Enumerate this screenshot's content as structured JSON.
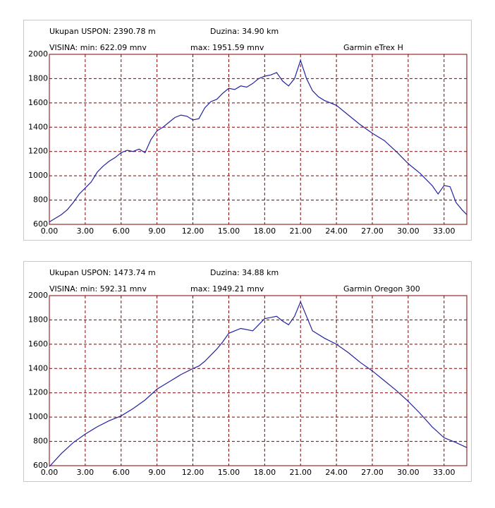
{
  "chart_data": [
    {
      "type": "line",
      "annotations": [
        "Ukupan USPON: 2390.78 m",
        "Duzina:  34.90 km",
        "VISINA: min: 622.09 mnv",
        "max: 1951.59 mnv",
        "Garmin eTrex H"
      ],
      "x": [
        0,
        0.5,
        1,
        1.5,
        2,
        2.5,
        3,
        3.5,
        4,
        4.5,
        5,
        5.5,
        6,
        6.5,
        7,
        7.5,
        8,
        8.5,
        9,
        9.5,
        10,
        10.5,
        11,
        11.5,
        12,
        12.5,
        13,
        13.5,
        14,
        14.5,
        15,
        15.5,
        16,
        16.5,
        17,
        17.5,
        18,
        18.5,
        19,
        19.5,
        20,
        20.5,
        21,
        21.5,
        22,
        22.5,
        23,
        24,
        25,
        26,
        27,
        28,
        29,
        30,
        31,
        32,
        32.5,
        33,
        33.5,
        34,
        34.5,
        34.9
      ],
      "series": [
        {
          "color": "#2323a0",
          "values": [
            620,
            650,
            680,
            720,
            780,
            850,
            900,
            950,
            1030,
            1080,
            1120,
            1150,
            1190,
            1210,
            1200,
            1220,
            1190,
            1300,
            1370,
            1400,
            1440,
            1480,
            1500,
            1490,
            1460,
            1470,
            1560,
            1610,
            1630,
            1680,
            1720,
            1710,
            1740,
            1730,
            1760,
            1800,
            1820,
            1830,
            1850,
            1780,
            1740,
            1800,
            1950,
            1800,
            1700,
            1650,
            1620,
            1580,
            1500,
            1420,
            1350,
            1290,
            1200,
            1100,
            1020,
            920,
            850,
            920,
            910,
            780,
            720,
            680
          ]
        }
      ],
      "xlim": [
        0,
        34.9
      ],
      "xticks": [
        {
          "value": 0,
          "label": "0.00"
        },
        {
          "value": 3,
          "label": "3.00"
        },
        {
          "value": 6,
          "label": "6.00"
        },
        {
          "value": 9,
          "label": "9.00"
        },
        {
          "value": 12,
          "label": "12.00"
        },
        {
          "value": 15,
          "label": "15.00"
        },
        {
          "value": 18,
          "label": "18.00"
        },
        {
          "value": 21,
          "label": "21.00"
        },
        {
          "value": 24,
          "label": "24.00"
        },
        {
          "value": 27,
          "label": "27.00"
        },
        {
          "value": 30,
          "label": "30.00"
        },
        {
          "value": 33,
          "label": "33.00"
        }
      ],
      "ylim": [
        600,
        2000
      ],
      "yticks": [
        600,
        800,
        1000,
        1200,
        1400,
        1600,
        1800,
        2000
      ],
      "grid": true
    },
    {
      "type": "line",
      "annotations": [
        "Ukupan USPON: 1473.74 m",
        "Duzina:  34.88 km",
        "VISINA: min: 592.31 mnv",
        "max: 1949.21 mnv",
        "Garmin Oregon 300"
      ],
      "x": [
        0,
        1,
        2,
        3,
        4,
        5,
        6,
        7,
        8,
        9,
        10,
        11,
        12,
        12.5,
        13,
        14,
        14.5,
        15,
        16,
        17,
        17.5,
        18,
        19,
        19.5,
        20,
        20.5,
        21,
        21.5,
        22,
        23,
        24,
        25,
        26,
        27,
        28,
        29,
        30,
        31,
        32,
        33,
        34,
        34.88
      ],
      "series": [
        {
          "color": "#2323a0",
          "values": [
            592,
            700,
            790,
            860,
            920,
            970,
            1010,
            1070,
            1140,
            1230,
            1290,
            1350,
            1400,
            1420,
            1460,
            1560,
            1620,
            1690,
            1730,
            1710,
            1760,
            1810,
            1830,
            1790,
            1760,
            1830,
            1949,
            1830,
            1710,
            1650,
            1600,
            1530,
            1450,
            1380,
            1300,
            1220,
            1130,
            1030,
            920,
            830,
            790,
            750
          ]
        }
      ],
      "xlim": [
        0,
        34.9
      ],
      "xticks": [
        {
          "value": 0,
          "label": "0.00"
        },
        {
          "value": 3,
          "label": "3.00"
        },
        {
          "value": 6,
          "label": "6.00"
        },
        {
          "value": 9,
          "label": "9.00"
        },
        {
          "value": 12,
          "label": "12.00"
        },
        {
          "value": 15,
          "label": "15.00"
        },
        {
          "value": 18,
          "label": "18.00"
        },
        {
          "value": 21,
          "label": "21.00"
        },
        {
          "value": 24,
          "label": "24.00"
        },
        {
          "value": 27,
          "label": "27.00"
        },
        {
          "value": 30,
          "label": "30.00"
        },
        {
          "value": 33,
          "label": "33.00"
        }
      ],
      "ylim": [
        600,
        2000
      ],
      "yticks": [
        600,
        800,
        1000,
        1200,
        1400,
        1600,
        1800,
        2000
      ],
      "grid": true
    }
  ]
}
